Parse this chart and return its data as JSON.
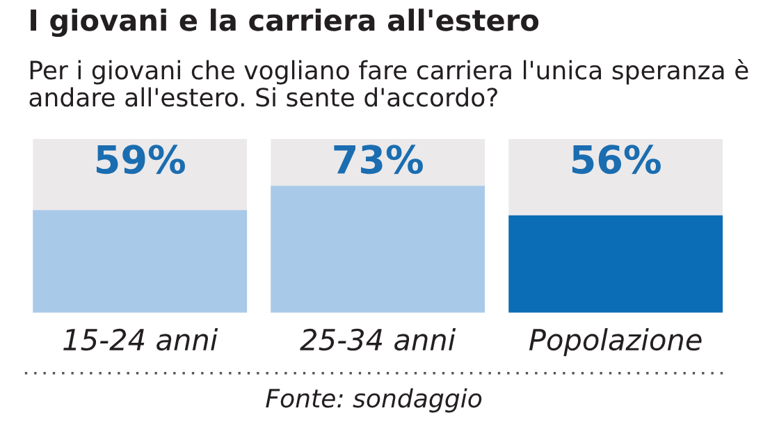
{
  "chart_data": {
    "type": "bar",
    "title": "I giovani e la carriera all'estero",
    "subtitle": "Per i giovani che vogliano fare carriera l'unica speranza è andare all'estero. Si sente d'accordo?",
    "categories": [
      "15-24 anni",
      "25-34 anni",
      "Popolazione"
    ],
    "values": [
      59,
      73,
      56
    ],
    "colors": [
      "#a9c9e9",
      "#a9c9e9",
      "#0a6db5"
    ],
    "value_labels": [
      "59%",
      "73%",
      "56%"
    ],
    "ylim": [
      0,
      100
    ],
    "tick_labels": "x",
    "grid": false,
    "legend": false,
    "annotations": [
      "Fonte: sondaggio"
    ]
  }
}
